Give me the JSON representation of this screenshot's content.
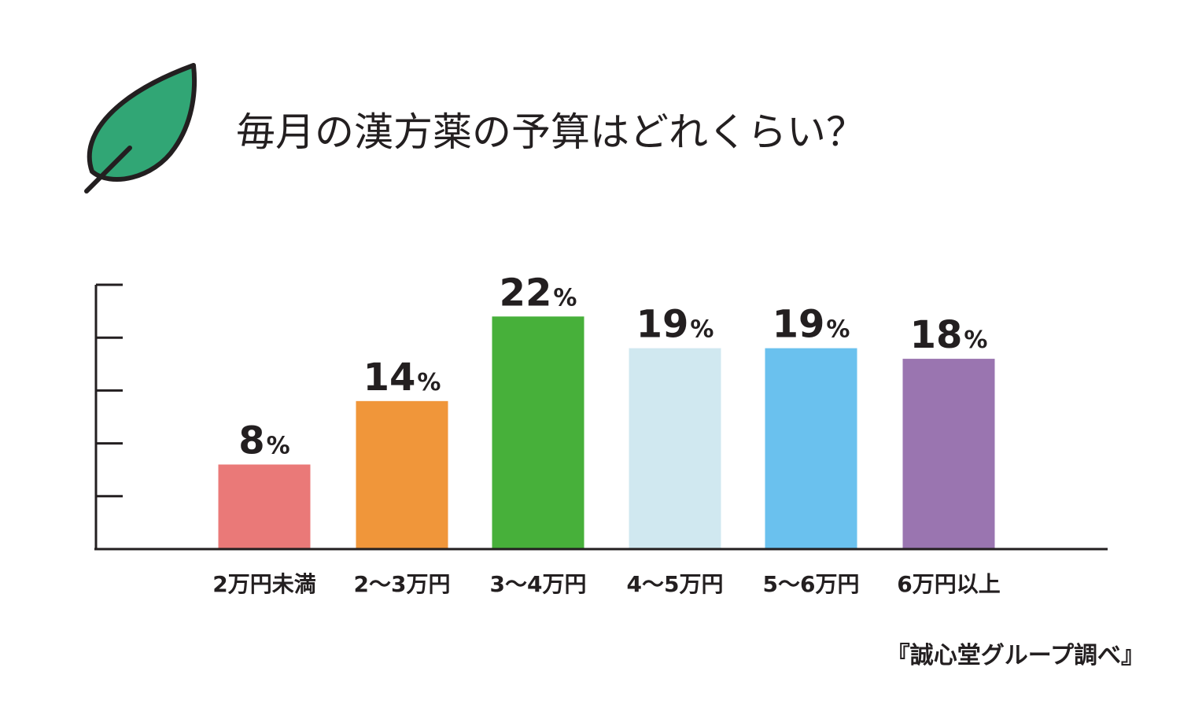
{
  "chart_data": {
    "type": "bar",
    "title": "毎月の漢方薬の予算はどれくらい？",
    "categories": [
      "2万円未満",
      "2〜3万円",
      "3〜4万円",
      "4〜5万円",
      "5〜6万円",
      "6万円以上"
    ],
    "values": [
      8,
      14,
      22,
      19,
      19,
      18
    ],
    "value_unit": "%",
    "colors": [
      "#ea7978",
      "#f0963a",
      "#47b03a",
      "#d0e8f0",
      "#6ac1ee",
      "#9a75b0"
    ],
    "ylim": [
      0,
      25
    ],
    "ytick_count": 5,
    "grid": false,
    "xlabel": "",
    "ylabel": ""
  },
  "source": "『誠心堂グループ調べ』",
  "icon": {
    "name": "leaf-icon",
    "fill": "#31a675",
    "stroke": "#231f20"
  }
}
